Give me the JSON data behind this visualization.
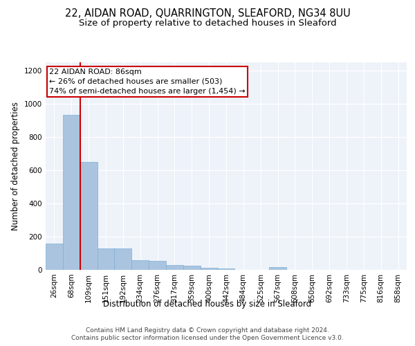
{
  "title_line1": "22, AIDAN ROAD, QUARRINGTON, SLEAFORD, NG34 8UU",
  "title_line2": "Size of property relative to detached houses in Sleaford",
  "xlabel": "Distribution of detached houses by size in Sleaford",
  "ylabel": "Number of detached properties",
  "footer_line1": "Contains HM Land Registry data © Crown copyright and database right 2024.",
  "footer_line2": "Contains public sector information licensed under the Open Government Licence v3.0.",
  "categories": [
    "26sqm",
    "68sqm",
    "109sqm",
    "151sqm",
    "192sqm",
    "234sqm",
    "276sqm",
    "317sqm",
    "359sqm",
    "400sqm",
    "442sqm",
    "484sqm",
    "525sqm",
    "567sqm",
    "608sqm",
    "650sqm",
    "692sqm",
    "733sqm",
    "775sqm",
    "816sqm",
    "858sqm"
  ],
  "values": [
    160,
    935,
    650,
    130,
    128,
    57,
    55,
    30,
    27,
    12,
    10,
    0,
    0,
    15,
    0,
    0,
    0,
    0,
    0,
    0,
    0
  ],
  "bar_color": "#aac4e0",
  "bar_edge_color": "#7aafd4",
  "vline_color": "#cc0000",
  "annotation_text": "22 AIDAN ROAD: 86sqm\n← 26% of detached houses are smaller (503)\n74% of semi-detached houses are larger (1,454) →",
  "annotation_box_color": "#cc0000",
  "ylim": [
    0,
    1250
  ],
  "yticks": [
    0,
    200,
    400,
    600,
    800,
    1000,
    1200
  ],
  "background_color": "#eef2f9",
  "grid_color": "#ffffff",
  "title_fontsize": 10.5,
  "subtitle_fontsize": 9.5,
  "axis_label_fontsize": 8.5,
  "tick_fontsize": 7.5,
  "annotation_fontsize": 8,
  "footer_fontsize": 6.5
}
